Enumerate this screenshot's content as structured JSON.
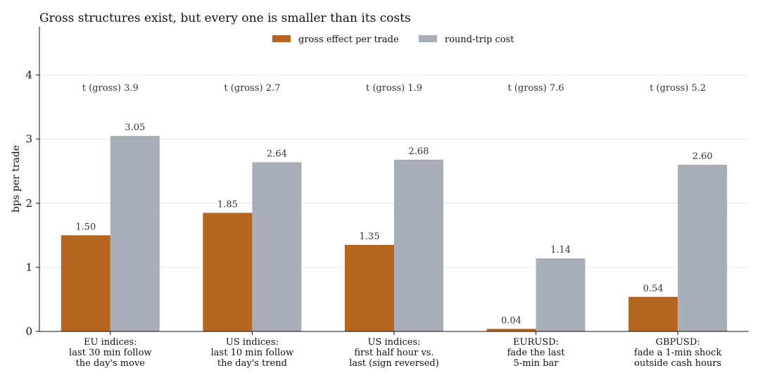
{
  "chart_data": {
    "type": "bar",
    "title": "Gross structures exist, but every one is smaller than its costs",
    "ylabel": "bps per trade",
    "xlabel": "",
    "ylim": [
      0,
      4.75
    ],
    "yticks": [
      0,
      1,
      2,
      3,
      4
    ],
    "grid": true,
    "legend_position": "top-center",
    "categories": [
      [
        "EU indices:",
        "last 30 min follow",
        "the day's move"
      ],
      [
        "US indices:",
        "last 10 min follow",
        "the day's trend"
      ],
      [
        "US indices:",
        "first half hour vs.",
        "last (sign reversed)"
      ],
      [
        "EURUSD:",
        "fade the last",
        "5-min bar"
      ],
      [
        "GBPUSD:",
        "fade a 1-min shock",
        "outside cash hours"
      ]
    ],
    "series": [
      {
        "name": "gross effect per trade",
        "color": "#b5651d",
        "values": [
          1.5,
          1.85,
          1.35,
          0.04,
          0.54
        ],
        "labels": [
          "1.50",
          "1.85",
          "1.35",
          "0.04",
          "0.54"
        ]
      },
      {
        "name": "round-trip cost",
        "color": "#a8aeb7",
        "values": [
          3.05,
          2.64,
          2.68,
          1.14,
          2.6
        ],
        "labels": [
          "3.05",
          "2.64",
          "2.68",
          "1.14",
          "2.60"
        ]
      }
    ],
    "annotations": [
      "t (gross) 3.9",
      "t (gross) 2.7",
      "t (gross) 1.9",
      "t (gross) 7.6",
      "t (gross) 5.2"
    ],
    "annotation_y": 3.8
  }
}
